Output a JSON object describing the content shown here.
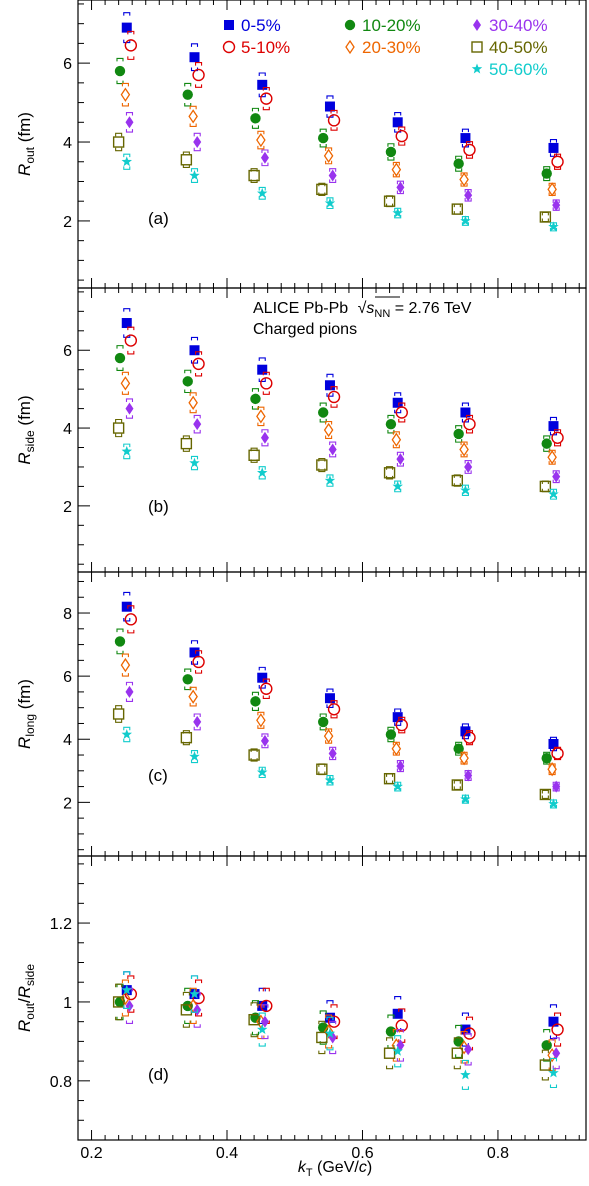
{
  "chart_data": {
    "type": "scatter",
    "xlabel": "k_T (GeV/c)",
    "xlabel_parts": {
      "base": "k",
      "sub": "T",
      "rest1": " (GeV/",
      "italic": "c",
      "rest2": ")"
    },
    "x_range": [
      0.18,
      0.93
    ],
    "x_ticks": [
      0.2,
      0.4,
      0.6,
      0.8
    ],
    "x_tick_labels": [
      "0.2",
      "0.4",
      "0.6",
      "0.8"
    ],
    "kT": [
      0.25,
      0.35,
      0.45,
      0.55,
      0.65,
      0.75,
      0.88
    ],
    "experiment_label": "ALICE Pb-Pb",
    "energy_label": {
      "sqrt": "s",
      "sub": "NN",
      "value": " = 2.76 TeV"
    },
    "particle_label": "Charged pions",
    "legend": [
      {
        "name": "0-5%",
        "color": "#0000dd",
        "marker": "square-filled"
      },
      {
        "name": "5-10%",
        "color": "#dd0000",
        "marker": "circle-open"
      },
      {
        "name": "10-20%",
        "color": "#118811",
        "marker": "circle-filled"
      },
      {
        "name": "20-30%",
        "color": "#ee6600",
        "marker": "diamond-open"
      },
      {
        "name": "30-40%",
        "color": "#9933ee",
        "marker": "diamond-filled"
      },
      {
        "name": "40-50%",
        "color": "#666600",
        "marker": "square-open"
      },
      {
        "name": "50-60%",
        "color": "#11cccc",
        "marker": "star"
      }
    ],
    "panels": [
      {
        "id": "a",
        "label": "(a)",
        "ylabel": {
          "base": "R",
          "sub": "out",
          "rest": " (fm)"
        },
        "y_range": [
          0.3,
          7.6
        ],
        "y_ticks": [
          2,
          4,
          6
        ],
        "y_tick_labels": [
          "2",
          "4",
          "6"
        ],
        "series": [
          {
            "name": "0-5%",
            "values": [
              6.9,
              6.15,
              5.45,
              4.9,
              4.5,
              4.1,
              3.85
            ]
          },
          {
            "name": "5-10%",
            "values": [
              6.45,
              5.7,
              5.1,
              4.55,
              4.15,
              3.8,
              3.5
            ]
          },
          {
            "name": "10-20%",
            "values": [
              5.8,
              5.2,
              4.6,
              4.1,
              3.75,
              3.45,
              3.2
            ]
          },
          {
            "name": "20-30%",
            "values": [
              5.2,
              4.65,
              4.05,
              3.65,
              3.3,
              3.05,
              2.8
            ]
          },
          {
            "name": "30-40%",
            "values": [
              4.5,
              4.0,
              3.6,
              3.15,
              2.85,
              2.65,
              2.4
            ]
          },
          {
            "name": "40-50%",
            "values": [
              4.0,
              3.55,
              3.15,
              2.8,
              2.5,
              2.3,
              2.1
            ]
          },
          {
            "name": "50-60%",
            "values": [
              3.5,
              3.15,
              2.7,
              2.45,
              2.2,
              2.0,
              1.85
            ]
          }
        ]
      },
      {
        "id": "b",
        "label": "(b)",
        "ylabel": {
          "base": "R",
          "sub": "side",
          "rest": " (fm)"
        },
        "y_range": [
          0.3,
          7.6
        ],
        "y_ticks": [
          2,
          4,
          6
        ],
        "y_tick_labels": [
          "2",
          "4",
          "6"
        ],
        "series": [
          {
            "name": "0-5%",
            "values": [
              6.7,
              6.0,
              5.5,
              5.1,
              4.65,
              4.4,
              4.05
            ]
          },
          {
            "name": "5-10%",
            "values": [
              6.25,
              5.65,
              5.15,
              4.8,
              4.4,
              4.1,
              3.75
            ]
          },
          {
            "name": "10-20%",
            "values": [
              5.8,
              5.2,
              4.75,
              4.4,
              4.1,
              3.85,
              3.6
            ]
          },
          {
            "name": "20-30%",
            "values": [
              5.15,
              4.65,
              4.3,
              3.95,
              3.7,
              3.45,
              3.25
            ]
          },
          {
            "name": "30-40%",
            "values": [
              4.5,
              4.1,
              3.75,
              3.45,
              3.2,
              3.0,
              2.75
            ]
          },
          {
            "name": "40-50%",
            "values": [
              4.0,
              3.6,
              3.3,
              3.05,
              2.85,
              2.65,
              2.5
            ]
          },
          {
            "name": "50-60%",
            "values": [
              3.4,
              3.1,
              2.85,
              2.65,
              2.5,
              2.4,
              2.3
            ]
          }
        ]
      },
      {
        "id": "c",
        "label": "(c)",
        "ylabel": {
          "base": "R",
          "sub": "long",
          "rest": " (fm)"
        },
        "y_range": [
          0.3,
          9.3
        ],
        "y_ticks": [
          2,
          4,
          6,
          8
        ],
        "y_tick_labels": [
          "2",
          "4",
          "6",
          "8"
        ],
        "series": [
          {
            "name": "0-5%",
            "values": [
              8.2,
              6.75,
              5.95,
              5.3,
              4.7,
              4.25,
              3.85
            ]
          },
          {
            "name": "5-10%",
            "values": [
              7.8,
              6.45,
              5.6,
              4.95,
              4.45,
              4.05,
              3.55
            ]
          },
          {
            "name": "10-20%",
            "values": [
              7.1,
              5.9,
              5.2,
              4.55,
              4.15,
              3.7,
              3.4
            ]
          },
          {
            "name": "20-30%",
            "values": [
              6.35,
              5.35,
              4.6,
              4.1,
              3.7,
              3.4,
              3.05
            ]
          },
          {
            "name": "30-40%",
            "values": [
              5.5,
              4.55,
              3.95,
              3.55,
              3.15,
              2.85,
              2.5
            ]
          },
          {
            "name": "40-50%",
            "values": [
              4.8,
              4.05,
              3.5,
              3.05,
              2.75,
              2.55,
              2.25
            ]
          },
          {
            "name": "50-60%",
            "values": [
              4.15,
              3.45,
              2.95,
              2.7,
              2.5,
              2.1,
              1.95
            ]
          }
        ]
      },
      {
        "id": "d",
        "label": "(d)",
        "ylabel": {
          "base": "R",
          "sub": "out",
          "slash": "/",
          "base2": "R",
          "sub2": "side"
        },
        "y_range": [
          0.65,
          1.37
        ],
        "y_ticks": [
          0.8,
          1.0,
          1.2
        ],
        "y_tick_labels": [
          "0.8",
          "1",
          "1.2"
        ],
        "series": [
          {
            "name": "0-5%",
            "values": [
              1.03,
              1.02,
              0.99,
              0.96,
              0.97,
              0.93,
              0.95
            ]
          },
          {
            "name": "5-10%",
            "values": [
              1.02,
              1.01,
              0.99,
              0.95,
              0.94,
              0.92,
              0.93
            ]
          },
          {
            "name": "10-20%",
            "values": [
              1.0,
              0.99,
              0.96,
              0.935,
              0.925,
              0.9,
              0.89
            ]
          },
          {
            "name": "20-30%",
            "values": [
              1.01,
              0.99,
              0.95,
              0.925,
              0.89,
              0.885,
              0.865
            ]
          },
          {
            "name": "30-40%",
            "values": [
              0.99,
              0.98,
              0.95,
              0.91,
              0.89,
              0.88,
              0.87
            ]
          },
          {
            "name": "40-50%",
            "values": [
              1.0,
              0.98,
              0.955,
              0.91,
              0.87,
              0.87,
              0.84
            ]
          },
          {
            "name": "50-60%",
            "values": [
              1.03,
              1.02,
              0.93,
              0.92,
              0.875,
              0.815,
              0.82
            ]
          }
        ]
      }
    ]
  }
}
